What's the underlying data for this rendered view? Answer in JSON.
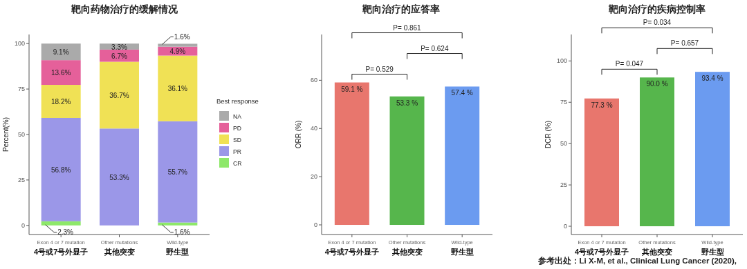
{
  "chart_data": [
    {
      "type": "bar",
      "title": "靶向药物治疗的缓解情况",
      "ylabel": "Percent(%)",
      "legend_title": "Best response",
      "legend": "right",
      "stacked": true,
      "categories": [
        "Exon 4 or 7 mutation\n4号或7号外显子",
        "Other mutations\n其他突变",
        "Wild-type\n野生型"
      ],
      "series": [
        {
          "name": "CR",
          "color": "#8ee86a",
          "values": [
            2.3,
            null,
            1.6
          ],
          "value_labels": [
            "2.3%",
            null,
            "1.6%"
          ]
        },
        {
          "name": "PR",
          "color": "#9b97e8",
          "values": [
            56.8,
            53.3,
            55.7
          ],
          "value_labels": [
            "56.8%",
            "53.3%",
            "55.7%"
          ]
        },
        {
          "name": "SD",
          "color": "#f0e155",
          "values": [
            18.2,
            36.7,
            36.1
          ],
          "value_labels": [
            "18.2%",
            "36.7%",
            "36.1%"
          ]
        },
        {
          "name": "PD",
          "color": "#e5609a",
          "values": [
            13.6,
            6.7,
            4.9
          ],
          "value_labels": [
            "13.6%",
            "6.7%",
            "4.9%"
          ]
        },
        {
          "name": "NA",
          "color": "#aaaaaa",
          "values": [
            9.1,
            3.3,
            1.6
          ],
          "value_labels": [
            "9.1%",
            "3.3%",
            "1.6%"
          ]
        }
      ],
      "ylim": [
        -5,
        105
      ],
      "yticks": [
        0,
        25,
        50,
        75,
        100
      ]
    },
    {
      "type": "bar",
      "title": "靶向治疗的应答率",
      "ylabel": "ORR (%)",
      "categories": [
        "Exon 4 or 7 mutation\n4号或7号外显子",
        "Other mutations\n其他突变",
        "Wild-type\n野生型"
      ],
      "values": [
        59.1,
        53.3,
        57.4
      ],
      "colors": [
        "#e8766d",
        "#56b64c",
        "#6b9bf0"
      ],
      "value_labels": [
        "59.1 %",
        "53.3 %",
        "57.4 %"
      ],
      "ylim": [
        -4,
        79
      ],
      "yticks": [
        0,
        20,
        40,
        60
      ],
      "annotations": [
        "P= 0.529",
        "P= 0.624",
        "P= 0.861"
      ]
    },
    {
      "type": "bar",
      "title": "靶向治疗的疾病控制率",
      "ylabel": "DCR (%)",
      "categories": [
        "Exon 4 or 7 mutation\n4号或7号外显子",
        "Other mutations\n其他突变",
        "Wild-type\n野生型"
      ],
      "values": [
        77.3,
        90.0,
        93.4
      ],
      "colors": [
        "#e8766d",
        "#56b64c",
        "#6b9bf0"
      ],
      "value_labels": [
        "77.3 %",
        "90.0 %",
        "93.4 %"
      ],
      "ylim": [
        -5,
        116
      ],
      "yticks": [
        0,
        25,
        50,
        75,
        100
      ],
      "annotations": [
        "P= 0.047",
        "P= 0.657",
        "P= 0.034",
        "参考出处：Li X-M, et al., Clinical Lung Cancer (2020),"
      ]
    }
  ]
}
